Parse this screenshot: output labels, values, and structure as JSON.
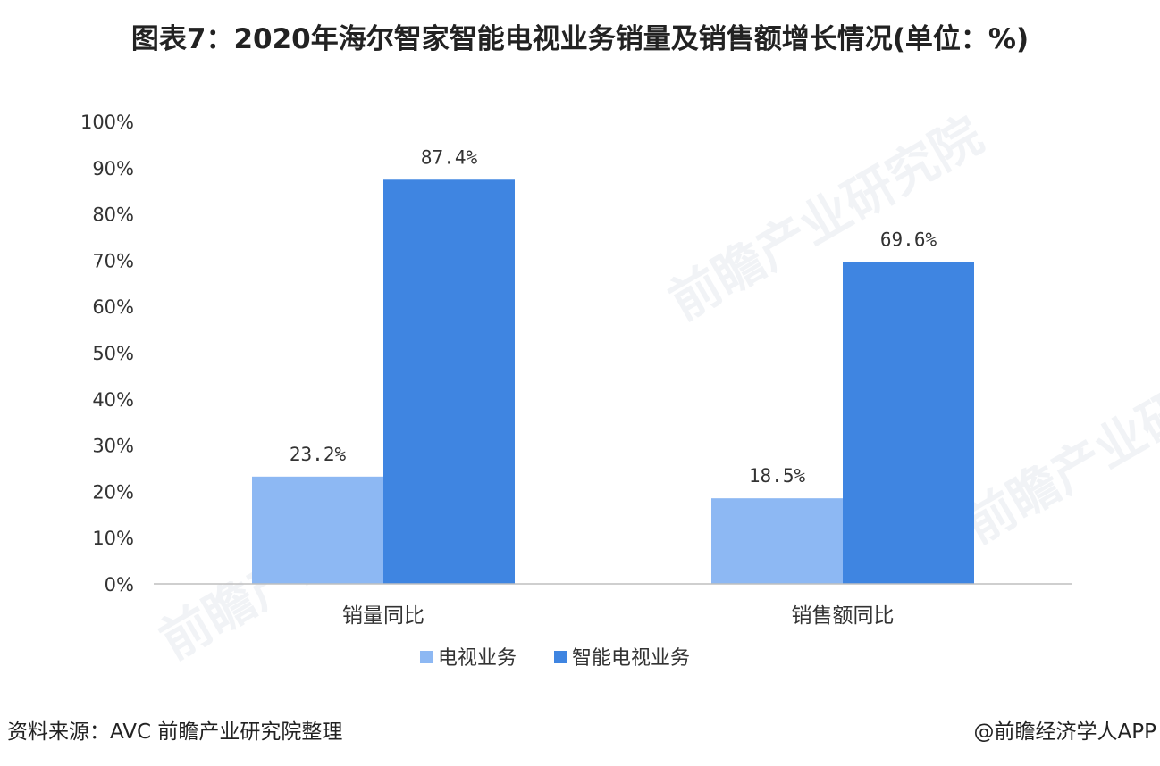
{
  "title": "图表7：2020年海尔智家智能电视业务销量及销售额增长情况(单位：%)",
  "source": "资料来源：AVC 前瞻产业研究院整理",
  "credit": "@前瞻经济学人APP",
  "watermark": "前瞻产业研究院",
  "colors": {
    "series1": "#8db8f3",
    "series2": "#3f85e1",
    "axis": "#bfbfbf",
    "text": "#333333"
  },
  "chart_data": {
    "type": "bar",
    "categories": [
      "销量同比",
      "销售额同比"
    ],
    "series": [
      {
        "name": "电视业务",
        "values": [
          23.2,
          18.5
        ],
        "labels": [
          "23.2%",
          "18.5%"
        ]
      },
      {
        "name": "智能电视业务",
        "values": [
          87.4,
          69.6
        ],
        "labels": [
          "87.4%",
          "69.6%"
        ]
      }
    ],
    "ylim": [
      0,
      100
    ],
    "yticks": [
      "0%",
      "10%",
      "20%",
      "30%",
      "40%",
      "50%",
      "60%",
      "70%",
      "80%",
      "90%",
      "100%"
    ],
    "grid": false,
    "legend": "bottom"
  }
}
